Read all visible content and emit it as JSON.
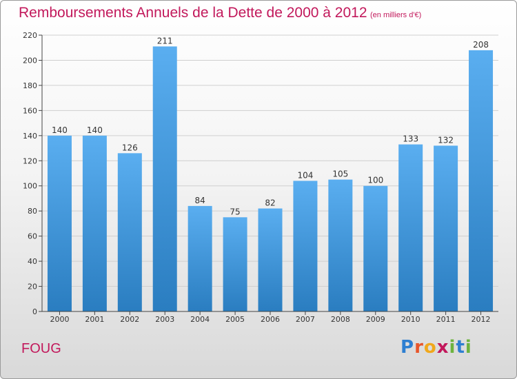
{
  "header": {
    "title": "Remboursements Annuels de la Dette de 2000 à 2012",
    "unit": "(en milliers d'€)"
  },
  "footer": {
    "commune": "FOUG",
    "logo": {
      "letters": [
        "P",
        "r",
        "o",
        "x",
        "i",
        "t",
        "i"
      ],
      "colors": [
        "#2e7fd1",
        "#e8562a",
        "#f0a81c",
        "#c2185b",
        "#6db33f",
        "#2e7fd1",
        "#6db33f"
      ]
    }
  },
  "colors": {
    "bar_light": "#5aaef0",
    "bar_dark": "#2a7dc0",
    "grid": "#cfcfcf",
    "axis": "#444444"
  },
  "chart_data": {
    "type": "bar",
    "title": "Remboursements Annuels de la Dette de 2000 à 2012",
    "xlabel": "",
    "ylabel": "",
    "categories": [
      "2000",
      "2001",
      "2002",
      "2003",
      "2004",
      "2005",
      "2006",
      "2007",
      "2008",
      "2009",
      "2010",
      "2011",
      "2012"
    ],
    "values": [
      140,
      140,
      126,
      211,
      84,
      75,
      82,
      104,
      105,
      100,
      133,
      132,
      208
    ],
    "ylim": [
      0,
      220
    ],
    "yticks": [
      0,
      20,
      40,
      60,
      80,
      100,
      120,
      140,
      160,
      180,
      200,
      220
    ],
    "grid": true,
    "legend": "none"
  }
}
